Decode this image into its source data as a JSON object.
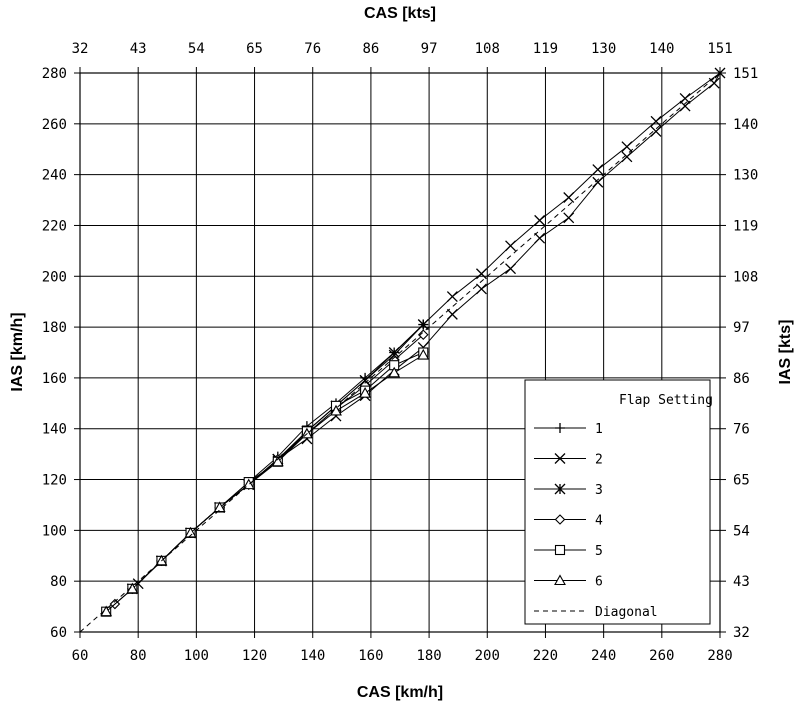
{
  "chart_data": {
    "type": "line",
    "title": "",
    "xlabel": "CAS [km/h]",
    "ylabel": "IAS [km/h]",
    "x2label": "CAS [kts]",
    "y2label": "IAS [kts]",
    "xlim": [
      60,
      280
    ],
    "ylim": [
      60,
      280
    ],
    "x_ticks": [
      "60",
      "80",
      "100",
      "120",
      "140",
      "160",
      "180",
      "200",
      "220",
      "240",
      "260",
      "280"
    ],
    "y_ticks": [
      "60",
      "80",
      "100",
      "120",
      "140",
      "160",
      "180",
      "200",
      "220",
      "240",
      "260",
      "280"
    ],
    "x2_ticks": [
      "32",
      "43",
      "54",
      "65",
      "76",
      "86",
      "97",
      "108",
      "119",
      "130",
      "140",
      "151"
    ],
    "y2_ticks": [
      "32",
      "43",
      "54",
      "65",
      "76",
      "86",
      "97",
      "108",
      "119",
      "130",
      "140",
      "151"
    ],
    "grid": true,
    "legend": {
      "title": "Flap Setting",
      "placement": "lower-right",
      "entries": [
        "1",
        "2",
        "3",
        "4",
        "5",
        "6",
        "Diagonal"
      ]
    },
    "series": [
      {
        "name": "1",
        "marker": "plus",
        "points": [
          [
            78,
            77
          ],
          [
            88,
            88
          ],
          [
            98,
            99
          ],
          [
            108,
            109
          ],
          [
            118,
            119
          ],
          [
            128,
            129
          ],
          [
            138,
            141
          ],
          [
            148,
            150
          ],
          [
            158,
            160
          ],
          [
            168,
            170
          ],
          [
            178,
            181
          ]
        ]
      },
      {
        "name": "2",
        "marker": "x",
        "points": [
          [
            78,
            77
          ],
          [
            88,
            88
          ],
          [
            98,
            99
          ],
          [
            108,
            109
          ],
          [
            118,
            118
          ],
          [
            128,
            128
          ],
          [
            138,
            136
          ],
          [
            148,
            145
          ],
          [
            158,
            153
          ],
          [
            168,
            163
          ],
          [
            178,
            172
          ],
          [
            188,
            185
          ],
          [
            198,
            195
          ],
          [
            208,
            203
          ],
          [
            218,
            215
          ],
          [
            228,
            223
          ],
          [
            238,
            237
          ],
          [
            248,
            247
          ],
          [
            258,
            257
          ],
          [
            268,
            267
          ],
          [
            278,
            276
          ],
          [
            280,
            280
          ],
          [
            268,
            270
          ],
          [
            258,
            261
          ],
          [
            248,
            251
          ],
          [
            238,
            242
          ],
          [
            228,
            231
          ],
          [
            218,
            222
          ],
          [
            208,
            212
          ],
          [
            198,
            201
          ],
          [
            188,
            192
          ],
          [
            178,
            181
          ],
          [
            168,
            170
          ],
          [
            158,
            159
          ],
          [
            148,
            149
          ],
          [
            138,
            139
          ],
          [
            128,
            128
          ],
          [
            118,
            118
          ],
          [
            108,
            109
          ],
          [
            98,
            99
          ],
          [
            88,
            88
          ],
          [
            80,
            79
          ]
        ]
      },
      {
        "name": "3",
        "marker": "star",
        "points": [
          [
            78,
            77
          ],
          [
            88,
            88
          ],
          [
            98,
            99
          ],
          [
            108,
            109
          ],
          [
            118,
            118
          ],
          [
            128,
            128
          ],
          [
            138,
            139
          ],
          [
            148,
            149
          ],
          [
            158,
            159
          ],
          [
            168,
            169
          ],
          [
            178,
            181
          ]
        ]
      },
      {
        "name": "4",
        "marker": "diamond",
        "points": [
          [
            72,
            71
          ],
          [
            78,
            77
          ],
          [
            88,
            88
          ],
          [
            98,
            99
          ],
          [
            108,
            109
          ],
          [
            118,
            118
          ],
          [
            128,
            128
          ],
          [
            138,
            138
          ],
          [
            148,
            148
          ],
          [
            158,
            157
          ],
          [
            168,
            167
          ],
          [
            178,
            177
          ]
        ]
      },
      {
        "name": "5",
        "marker": "square",
        "points": [
          [
            69,
            68
          ],
          [
            78,
            77
          ],
          [
            88,
            88
          ],
          [
            98,
            99
          ],
          [
            108,
            109
          ],
          [
            118,
            119
          ],
          [
            128,
            127
          ],
          [
            138,
            139
          ],
          [
            148,
            149
          ],
          [
            158,
            155
          ],
          [
            168,
            165
          ],
          [
            178,
            170
          ]
        ]
      },
      {
        "name": "6",
        "marker": "triangle",
        "points": [
          [
            69,
            68
          ],
          [
            78,
            77
          ],
          [
            88,
            88
          ],
          [
            98,
            99
          ],
          [
            108,
            109
          ],
          [
            118,
            118
          ],
          [
            128,
            127
          ],
          [
            138,
            138
          ],
          [
            148,
            147
          ],
          [
            158,
            154
          ],
          [
            168,
            162
          ],
          [
            178,
            169
          ]
        ]
      },
      {
        "name": "Diagonal",
        "marker": "none",
        "dashed": true,
        "points": [
          [
            60,
            60
          ],
          [
            280,
            280
          ]
        ]
      }
    ]
  }
}
